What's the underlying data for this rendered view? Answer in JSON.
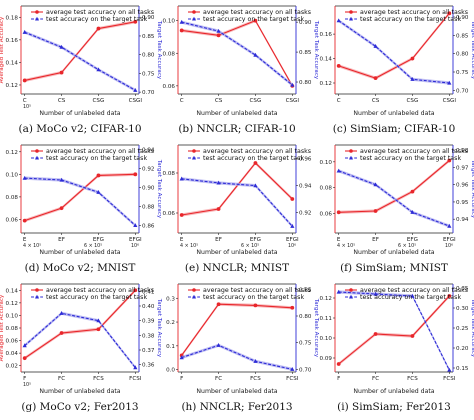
{
  "colors": {
    "red": "#e8262b",
    "blue": "#2d2bd6",
    "band_red": "#f5a3a5",
    "band_blue": "#a9a8ef"
  },
  "legend": {
    "red_label": "average test accuracy on all tasks",
    "blue_label": "test accuracy on the target task"
  },
  "chart_data": [
    {
      "type": "line",
      "caption": "(a) MoCo v2; CIFAR-10",
      "categories": [
        "C",
        "CS",
        "CSG",
        "CSGI"
      ],
      "x": [
        1,
        2,
        3,
        4
      ],
      "xlim": [
        0.9,
        4.1
      ],
      "x_scale": "log",
      "x_exponent": "10⁵",
      "xlabel": "Number of unlabeled data",
      "ylabel_left": "Averaged Test Accuracy",
      "ylabel_right": "Target Task Accuracy",
      "left_ticks": [
        "0.12",
        "0.14",
        "0.16",
        "0.18"
      ],
      "left_ylim": [
        0.112,
        0.19
      ],
      "right_ticks": [
        "0.70",
        "0.75",
        "0.80",
        "0.85",
        "0.90"
      ],
      "right_ylim": [
        0.695,
        0.93
      ],
      "series": [
        {
          "name": "average test accuracy on all tasks",
          "axis": "left",
          "values": [
            0.124,
            0.131,
            0.17,
            0.176
          ]
        },
        {
          "name": "test accuracy on the target task",
          "axis": "right",
          "values": [
            0.86,
            0.82,
            0.76,
            0.705
          ]
        }
      ]
    },
    {
      "type": "line",
      "caption": "(b) NNCLR; CIFAR-10",
      "categories": [
        "C",
        "CS",
        "CSG",
        "CSGI"
      ],
      "x": [
        1,
        2,
        3,
        4
      ],
      "xlim": [
        0.9,
        4.1
      ],
      "x_scale": "log",
      "xlabel": "Number of unlabeled data",
      "ylabel_left": "",
      "ylabel_right": "Target Task Accuracy",
      "left_ticks": [
        "0.06",
        "0.08",
        "0.10"
      ],
      "left_ylim": [
        0.055,
        0.109
      ],
      "right_ticks": [
        "0.80",
        "0.85",
        "0.90"
      ],
      "right_ylim": [
        0.78,
        0.927
      ],
      "series": [
        {
          "name": "average test accuracy on all tasks",
          "axis": "left",
          "values": [
            0.094,
            0.091,
            0.1,
            0.06
          ]
        },
        {
          "name": "test accuracy on the target task",
          "axis": "right",
          "values": [
            0.9,
            0.885,
            0.845,
            0.795
          ]
        }
      ]
    },
    {
      "type": "line",
      "caption": "(c) SimSiam; CIFAR-10",
      "categories": [
        "C",
        "CS",
        "CSG",
        "CSGI"
      ],
      "x": [
        1,
        2,
        3,
        4
      ],
      "xlim": [
        0.9,
        4.1
      ],
      "x_scale": "log",
      "xlabel": "Number of unlabeled data",
      "ylabel_left": "",
      "ylabel_right": "Target Task Accuracy",
      "left_ticks": [
        "0.12",
        "0.14",
        "0.16"
      ],
      "left_ylim": [
        0.111,
        0.183
      ],
      "right_ticks": [
        "0.70",
        "0.75",
        "0.80",
        "0.85",
        "0.90"
      ],
      "right_ylim": [
        0.69,
        0.93
      ],
      "series": [
        {
          "name": "average test accuracy on all tasks",
          "axis": "left",
          "values": [
            0.134,
            0.124,
            0.14,
            0.177
          ]
        },
        {
          "name": "test accuracy on the target task",
          "axis": "right",
          "values": [
            0.89,
            0.82,
            0.73,
            0.72
          ]
        }
      ]
    },
    {
      "type": "line",
      "caption": "(d) MoCo v2; MNIST",
      "categories": [
        "E",
        "EF",
        "EFG",
        "EFGI"
      ],
      "x": [
        1,
        2,
        3,
        4
      ],
      "xlim": [
        0.9,
        4.1
      ],
      "x_scale": "log",
      "extra_ticks": [
        "4 × 10⁵",
        "6 × 10⁵",
        "10⁶"
      ],
      "xlabel": "Number of unlabeled data",
      "ylabel_left": "",
      "ylabel_right": "Target Task Accuracy",
      "left_ticks": [
        "0.06",
        "0.08",
        "0.10",
        "0.12"
      ],
      "left_ylim": [
        0.048,
        0.126
      ],
      "right_ticks": [
        "0.86",
        "0.88",
        "0.90",
        "0.92",
        "0.94"
      ],
      "right_ylim": [
        0.852,
        0.945
      ],
      "series": [
        {
          "name": "average test accuracy on all tasks",
          "axis": "left",
          "values": [
            0.059,
            0.07,
            0.099,
            0.1
          ]
        },
        {
          "name": "test accuracy on the target task",
          "axis": "right",
          "values": [
            0.91,
            0.908,
            0.895,
            0.86
          ]
        }
      ]
    },
    {
      "type": "line",
      "caption": "(e) NNCLR; MNIST",
      "categories": [
        "E",
        "EF",
        "EFG",
        "EFGI"
      ],
      "x": [
        1,
        2,
        3,
        4
      ],
      "xlim": [
        0.9,
        4.1
      ],
      "x_scale": "log",
      "extra_ticks": [
        "4 × 10⁵",
        "6 × 10⁵",
        "10⁶"
      ],
      "xlabel": "Number of unlabeled data",
      "ylabel_left": "",
      "ylabel_right": "",
      "left_ticks": [
        "0.06",
        "0.08"
      ],
      "left_ylim": [
        0.05,
        0.094
      ],
      "right_ticks": [
        "0.92",
        "0.94",
        "0.96"
      ],
      "right_ylim": [
        0.905,
        0.97
      ],
      "series": [
        {
          "name": "average test accuracy on all tasks",
          "axis": "left",
          "values": [
            0.059,
            0.062,
            0.085,
            0.067
          ]
        },
        {
          "name": "test accuracy on the target task",
          "axis": "right",
          "values": [
            0.945,
            0.942,
            0.94,
            0.91
          ]
        }
      ]
    },
    {
      "type": "line",
      "caption": "(f) SimSiam; MNIST",
      "categories": [
        "E",
        "EF",
        "EFG",
        "EFGI"
      ],
      "x": [
        1,
        2,
        3,
        4
      ],
      "xlim": [
        0.9,
        4.1
      ],
      "x_scale": "log",
      "extra_ticks": [
        "4 × 10⁵",
        "6 × 10⁵",
        "10⁶"
      ],
      "xlabel": "Number of unlabeled data",
      "ylabel_left": "",
      "ylabel_right": "Target Task Accuracy",
      "left_ticks": [
        "0.06",
        "0.08",
        "0.10"
      ],
      "left_ylim": [
        0.045,
        0.113
      ],
      "right_ticks": [
        "0.94",
        "0.95",
        "0.96",
        "0.97",
        "0.98"
      ],
      "right_ylim": [
        0.932,
        0.983
      ],
      "series": [
        {
          "name": "average test accuracy on all tasks",
          "axis": "left",
          "values": [
            0.061,
            0.062,
            0.077,
            0.101
          ]
        },
        {
          "name": "test accuracy on the target task",
          "axis": "right",
          "values": [
            0.968,
            0.96,
            0.944,
            0.936
          ]
        }
      ]
    },
    {
      "type": "line",
      "caption": "(g) MoCo v2; Fer2013",
      "categories": [
        "F",
        "FC",
        "FCS",
        "FCSI"
      ],
      "x": [
        1,
        2,
        3,
        4
      ],
      "xlim": [
        0.9,
        4.1
      ],
      "x_scale": "log",
      "x_exponent": "10⁵",
      "xlabel": "Number of unlabeled data",
      "ylabel_left": "Averaged Test Accuracy",
      "ylabel_right": "Target Task Accuracy",
      "left_ticks": [
        "0.02",
        "0.04",
        "0.06",
        "0.08",
        "0.10",
        "0.12",
        "0.14"
      ],
      "left_ylim": [
        0.01,
        0.15
      ],
      "right_ticks": [
        "0.36",
        "0.37",
        "0.38",
        "0.39",
        "0.40",
        "0.41"
      ],
      "right_ylim": [
        0.355,
        0.415
      ],
      "series": [
        {
          "name": "average test accuracy on all tasks",
          "axis": "left",
          "values": [
            0.032,
            0.072,
            0.078,
            0.14
          ]
        },
        {
          "name": "test accuracy on the target task",
          "axis": "right",
          "values": [
            0.373,
            0.395,
            0.39,
            0.358
          ]
        }
      ]
    },
    {
      "type": "line",
      "caption": "(h) NNCLR; Fer2013",
      "categories": [
        "F",
        "FC",
        "FCS",
        "FCSI"
      ],
      "x": [
        1,
        2,
        3,
        4
      ],
      "xlim": [
        0.9,
        4.1
      ],
      "x_scale": "log",
      "xlabel": "Number of unlabeled data",
      "ylabel_left": "",
      "ylabel_right": "Target Task Accuracy",
      "left_ticks": [
        "0.0",
        "0.1",
        "0.2",
        "0.3"
      ],
      "left_ylim": [
        -0.01,
        0.36
      ],
      "right_ticks": [
        "0.70",
        "0.75",
        "0.80",
        "0.85"
      ],
      "right_ylim": [
        0.695,
        0.86
      ],
      "series": [
        {
          "name": "average test accuracy on all tasks",
          "axis": "left",
          "values": [
            0.06,
            0.275,
            0.27,
            0.26
          ]
        },
        {
          "name": "test accuracy on the target task",
          "axis": "right",
          "values": [
            0.722,
            0.745,
            0.715,
            0.7
          ]
        }
      ]
    },
    {
      "type": "line",
      "caption": "(i) SimSiam; Fer2013",
      "categories": [
        "F",
        "FC",
        "FCS",
        "FCSI"
      ],
      "x": [
        1,
        2,
        3,
        4
      ],
      "xlim": [
        0.9,
        4.1
      ],
      "x_scale": "log",
      "xlabel": "Number of unlabeled data",
      "ylabel_left": "",
      "ylabel_right": "Target Task Accuracy",
      "left_ticks": [
        "0.09",
        "0.10",
        "0.11",
        "0.12"
      ],
      "left_ylim": [
        0.083,
        0.127
      ],
      "right_ticks": [
        "0.15",
        "0.20",
        "0.25",
        "0.30",
        "0.35"
      ],
      "right_ylim": [
        0.14,
        0.36
      ],
      "series": [
        {
          "name": "average test accuracy on all tasks",
          "axis": "left",
          "values": [
            0.087,
            0.102,
            0.101,
            0.121
          ]
        },
        {
          "name": "test accuracy on the target task",
          "axis": "right",
          "values": [
            0.34,
            0.335,
            0.33,
            0.145
          ]
        }
      ]
    }
  ]
}
